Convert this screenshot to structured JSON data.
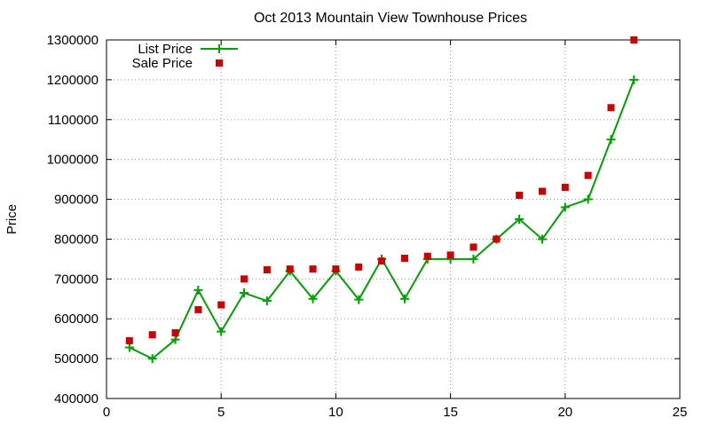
{
  "chart_data": {
    "type": "line",
    "title": "Oct 2013 Mountain View Townhouse Prices",
    "xlabel": "",
    "ylabel": "Price",
    "xlim": [
      0,
      25
    ],
    "ylim": [
      400000,
      1300000
    ],
    "x_ticks": [
      "0",
      "5",
      "10",
      "15",
      "20",
      "25"
    ],
    "y_ticks": [
      "400000",
      "500000",
      "600000",
      "700000",
      "800000",
      "900000",
      "1000000",
      "1100000",
      "1200000",
      "1300000"
    ],
    "grid": true,
    "legend_position": "top-left",
    "series": [
      {
        "name": "List Price",
        "style": "line-with-plus-markers",
        "color": "#00a000",
        "x": [
          1,
          2,
          3,
          4,
          5,
          6,
          7,
          8,
          9,
          10,
          11,
          12,
          13,
          14,
          15,
          16,
          17,
          18,
          19,
          20,
          21,
          22,
          23
        ],
        "values": [
          528000,
          500000,
          548000,
          672000,
          568000,
          665000,
          645000,
          720000,
          650000,
          720000,
          648000,
          750000,
          650000,
          750000,
          750000,
          750000,
          800000,
          850000,
          800000,
          880000,
          900000,
          1050000,
          1200000
        ]
      },
      {
        "name": "Sale Price",
        "style": "square-markers",
        "color": "#cc0000",
        "x": [
          1,
          2,
          3,
          4,
          5,
          6,
          7,
          8,
          9,
          10,
          11,
          12,
          13,
          14,
          15,
          16,
          17,
          18,
          19,
          20,
          21,
          22,
          23
        ],
        "values": [
          545000,
          560000,
          565000,
          623000,
          635000,
          700000,
          723000,
          725000,
          725000,
          725000,
          730000,
          745000,
          752000,
          757000,
          760000,
          780000,
          800000,
          910000,
          920000,
          930000,
          960000,
          1130000,
          1300000
        ]
      }
    ]
  }
}
